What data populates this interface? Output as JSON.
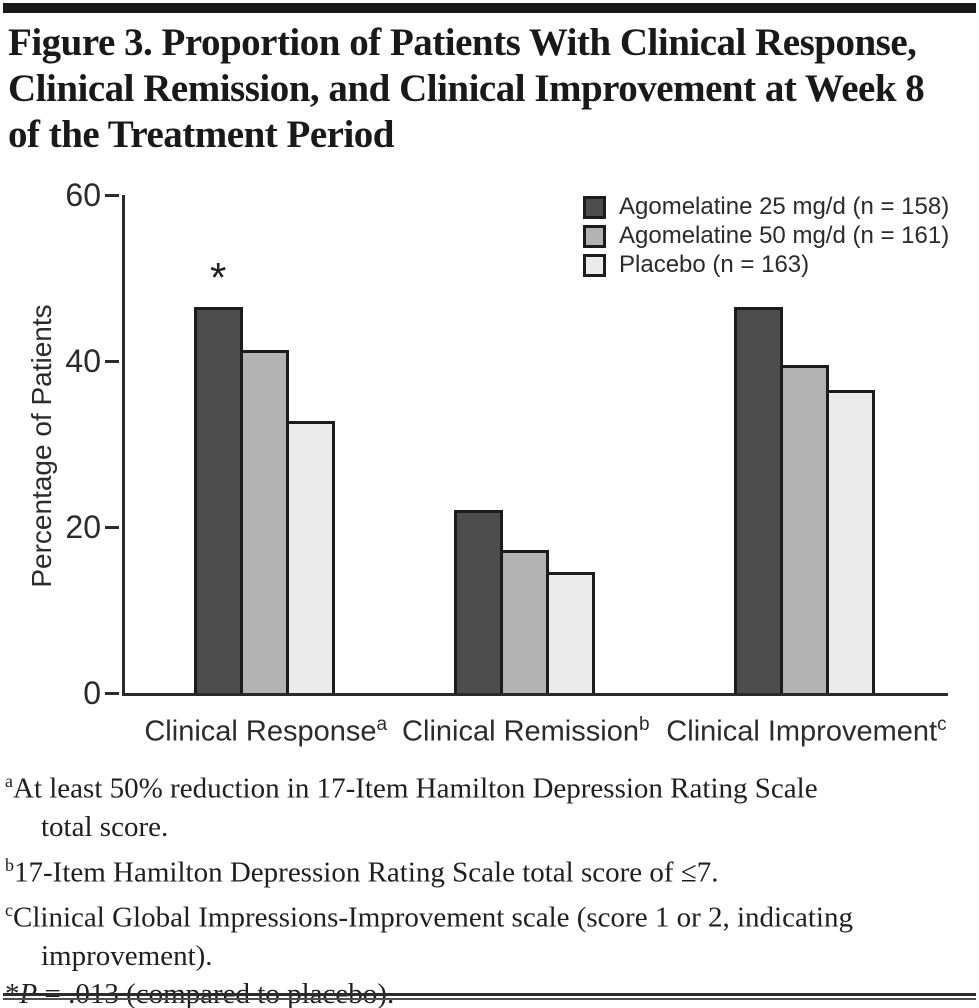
{
  "figure": {
    "title_lines": [
      "Figure 3. Proportion of Patients With Clinical Response,",
      "Clinical Remission, and Clinical Improvement at Week 8",
      "of the Treatment Period"
    ]
  },
  "chart_data": {
    "type": "bar",
    "title": "",
    "xlabel": "",
    "ylabel": "Percentage of Patients",
    "ylim": [
      0,
      60
    ],
    "yticks": [
      0,
      20,
      40,
      60
    ],
    "grid": false,
    "legend_position": "top-right",
    "categories": [
      "Clinical Response",
      "Clinical Remission",
      "Clinical Improvement"
    ],
    "category_footnote_marks": [
      "a",
      "b",
      "c"
    ],
    "series": [
      {
        "name": "Agomelatine 25 mg/d (n = 158)",
        "color": "#4d4d4d",
        "values": [
          46.5,
          22.0,
          46.5
        ]
      },
      {
        "name": "Agomelatine 50 mg/d (n = 161)",
        "color": "#b3b3b3",
        "values": [
          41.3,
          17.2,
          39.5
        ]
      },
      {
        "name": "Placebo (n = 163)",
        "color": "#ebebeb",
        "values": [
          32.8,
          14.6,
          36.5
        ]
      }
    ],
    "annotations": [
      {
        "text": "*",
        "category_index": 0,
        "series_index": 0
      }
    ]
  },
  "footnotes": {
    "a": {
      "mark": "a",
      "line1": "At least 50% reduction in 17-Item Hamilton Depression Rating Scale",
      "line2": "total score."
    },
    "b": {
      "mark": "b",
      "line1": "17-Item Hamilton Depression Rating Scale total score of ≤7."
    },
    "c": {
      "mark": "c",
      "line1": "Clinical Global Impressions-Improvement scale (score 1 or 2, indicating",
      "line2": "improvement)."
    },
    "star": {
      "mark": "*",
      "p": "P",
      "rest": " = .013 (compared to placebo)."
    }
  },
  "colors": {
    "bar_border": "#1c1c1c",
    "axis": "#2a2a2a",
    "text": "#1f1f1f"
  }
}
